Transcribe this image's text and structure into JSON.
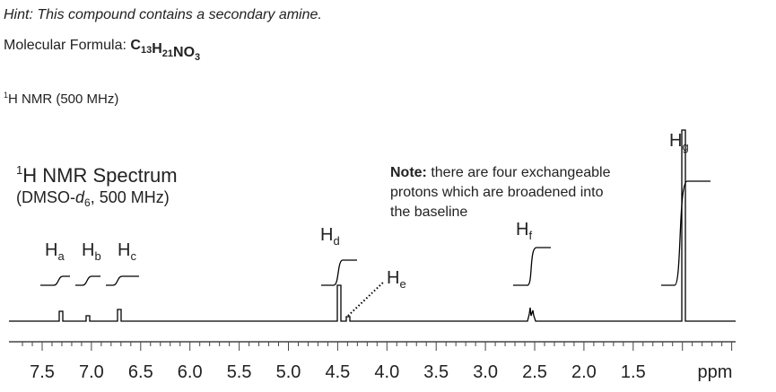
{
  "hint": "Hint: This compound contains a secondary amine.",
  "formula_label": "Molecular Formula:",
  "formula": [
    {
      "el": "C",
      "n": "13"
    },
    {
      "el": "H",
      "n": "21"
    },
    {
      "el": "NO",
      "n": "3"
    }
  ],
  "nmr_heading": {
    "sup": "1",
    "text": "H NMR (500 MHz)"
  },
  "spectrum": {
    "title": {
      "sup": "1",
      "text": "H NMR Spectrum"
    },
    "solvent": {
      "pre": "(DMSO-",
      "italic": "d",
      "sub": "6",
      "post": ", 500 MHz)"
    },
    "note": {
      "bold": "Note:",
      "lines": [
        " there are four exchangeable",
        "protons which are broadened into",
        "the baseline"
      ]
    },
    "peak_labels": [
      {
        "letter": "H",
        "sub": "a"
      },
      {
        "letter": "H",
        "sub": "b"
      },
      {
        "letter": "H",
        "sub": "c"
      },
      {
        "letter": "H",
        "sub": "d"
      },
      {
        "letter": "H",
        "sub": "e"
      },
      {
        "letter": "H",
        "sub": "f"
      },
      {
        "letter": "H",
        "sub": "g"
      }
    ],
    "tick_labels": [
      "7.5",
      "7.0",
      "6.5",
      "6.0",
      "5.5",
      "5.0",
      "4.5",
      "4.0",
      "3.5",
      "3.0",
      "2.5",
      "2.0",
      "1.5"
    ],
    "unit": "ppm"
  }
}
